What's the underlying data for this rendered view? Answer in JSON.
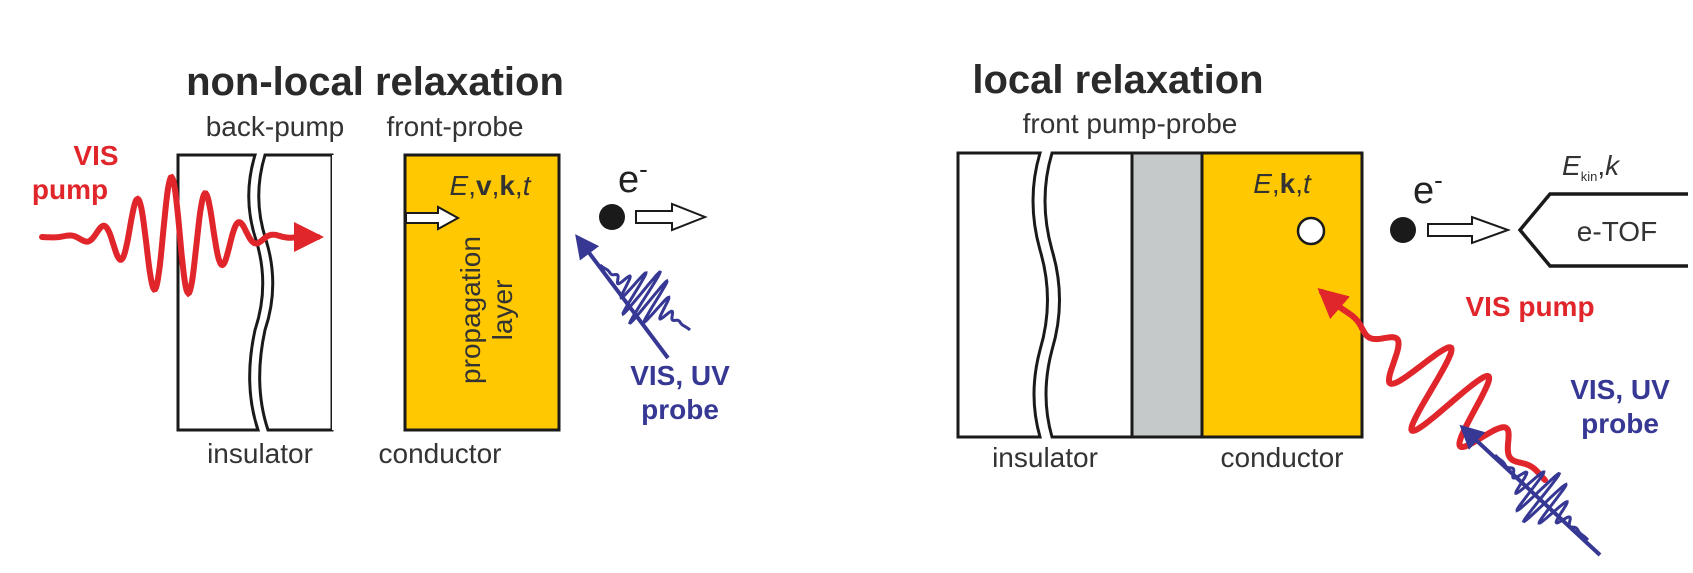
{
  "colors": {
    "red": "#e0262b",
    "blue": "#363894",
    "gold": "#ffc800",
    "gray": "#c6c9c9",
    "black": "#1a1a1a"
  },
  "left": {
    "title": "non-local relaxation",
    "back_pump_label": "back-pump",
    "front_probe_label": "front-probe",
    "pump_label_line1": "VIS",
    "pump_label_line2": "pump",
    "conductor_vars": {
      "E": "E",
      "v": "v",
      "k": "k",
      "t": "t"
    },
    "propagation_line1": "propagation",
    "propagation_line2": "layer",
    "electron_base": "e",
    "electron_sup": "-",
    "probe_label_line1": "VIS, UV",
    "probe_label_line2": "probe",
    "insulator_label": "insulator",
    "conductor_label": "conductor"
  },
  "right": {
    "title": "local relaxation",
    "front_label": "front pump-probe",
    "conductor_vars": {
      "E": "E",
      "k": "k",
      "t": "t"
    },
    "electron_base": "e",
    "electron_sup": "-",
    "ekin_base": "E",
    "ekin_sub": "kin",
    "ekin_k": "k",
    "tof_label": "e-TOF",
    "pump_label": "VIS pump",
    "probe_label_line1": "VIS, UV",
    "probe_label_line2": "probe",
    "insulator_label": "insulator",
    "conductor_label": "conductor"
  }
}
